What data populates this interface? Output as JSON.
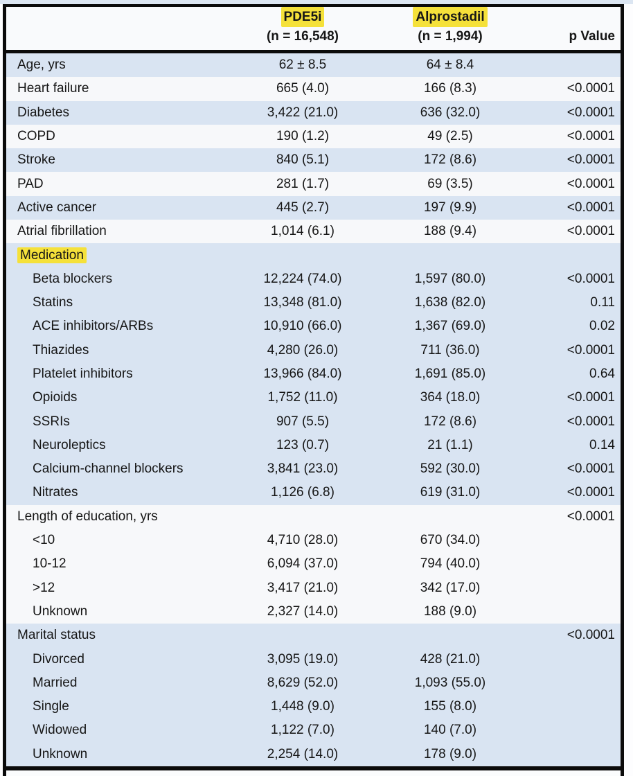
{
  "colors": {
    "highlight_yellow": "#f5e13a",
    "row_blue": "#d9e4f2",
    "row_white": "#f7f8fa",
    "border_black": "#0b0b0b"
  },
  "table": {
    "header": {
      "group1": {
        "name": "PDE5i",
        "n": "(n = 16,548)",
        "highlight": true
      },
      "group2": {
        "name": "Alprostadil",
        "n": "(n = 1,994)",
        "highlight": true
      },
      "pvalue_label": "p Value"
    },
    "rows": [
      {
        "label": "Age, yrs",
        "v1": "62 ± 8.5",
        "v2": "64 ± 8.4",
        "p": "",
        "indent": false,
        "highlight": false,
        "shade": "blue"
      },
      {
        "label": "Heart failure",
        "v1": "665 (4.0)",
        "v2": "166 (8.3)",
        "p": "<0.0001",
        "indent": false,
        "highlight": false,
        "shade": "white"
      },
      {
        "label": "Diabetes",
        "v1": "3,422 (21.0)",
        "v2": "636 (32.0)",
        "p": "<0.0001",
        "indent": false,
        "highlight": false,
        "shade": "blue"
      },
      {
        "label": "COPD",
        "v1": "190 (1.2)",
        "v2": "49 (2.5)",
        "p": "<0.0001",
        "indent": false,
        "highlight": false,
        "shade": "white"
      },
      {
        "label": "Stroke",
        "v1": "840 (5.1)",
        "v2": "172 (8.6)",
        "p": "<0.0001",
        "indent": false,
        "highlight": false,
        "shade": "blue"
      },
      {
        "label": "PAD",
        "v1": "281 (1.7)",
        "v2": "69 (3.5)",
        "p": "<0.0001",
        "indent": false,
        "highlight": false,
        "shade": "white"
      },
      {
        "label": "Active cancer",
        "v1": "445 (2.7)",
        "v2": "197 (9.9)",
        "p": "<0.0001",
        "indent": false,
        "highlight": false,
        "shade": "blue"
      },
      {
        "label": "Atrial fibrillation",
        "v1": "1,014 (6.1)",
        "v2": "188 (9.4)",
        "p": "<0.0001",
        "indent": false,
        "highlight": false,
        "shade": "white"
      },
      {
        "label": "Medication",
        "v1": "",
        "v2": "",
        "p": "",
        "indent": false,
        "highlight": true,
        "shade": "blue"
      },
      {
        "label": "Beta blockers",
        "v1": "12,224 (74.0)",
        "v2": "1,597 (80.0)",
        "p": "<0.0001",
        "indent": true,
        "highlight": false,
        "shade": "blue"
      },
      {
        "label": "Statins",
        "v1": "13,348 (81.0)",
        "v2": "1,638 (82.0)",
        "p": "0.11",
        "indent": true,
        "highlight": false,
        "shade": "blue"
      },
      {
        "label": "ACE inhibitors/ARBs",
        "v1": "10,910 (66.0)",
        "v2": "1,367 (69.0)",
        "p": "0.02",
        "indent": true,
        "highlight": false,
        "shade": "blue"
      },
      {
        "label": "Thiazides",
        "v1": "4,280 (26.0)",
        "v2": "711 (36.0)",
        "p": "<0.0001",
        "indent": true,
        "highlight": false,
        "shade": "blue"
      },
      {
        "label": "Platelet inhibitors",
        "v1": "13,966 (84.0)",
        "v2": "1,691 (85.0)",
        "p": "0.64",
        "indent": true,
        "highlight": false,
        "shade": "blue"
      },
      {
        "label": "Opioids",
        "v1": "1,752 (11.0)",
        "v2": "364 (18.0)",
        "p": "<0.0001",
        "indent": true,
        "highlight": false,
        "shade": "blue"
      },
      {
        "label": "SSRIs",
        "v1": "907 (5.5)",
        "v2": "172 (8.6)",
        "p": "<0.0001",
        "indent": true,
        "highlight": false,
        "shade": "blue"
      },
      {
        "label": "Neuroleptics",
        "v1": "123 (0.7)",
        "v2": "21 (1.1)",
        "p": "0.14",
        "indent": true,
        "highlight": false,
        "shade": "blue"
      },
      {
        "label": "Calcium-channel blockers",
        "v1": "3,841 (23.0)",
        "v2": "592 (30.0)",
        "p": "<0.0001",
        "indent": true,
        "highlight": false,
        "shade": "blue"
      },
      {
        "label": "Nitrates",
        "v1": "1,126 (6.8)",
        "v2": "619 (31.0)",
        "p": "<0.0001",
        "indent": true,
        "highlight": false,
        "shade": "blue"
      },
      {
        "label": "Length of education, yrs",
        "v1": "",
        "v2": "",
        "p": "<0.0001",
        "indent": false,
        "highlight": false,
        "shade": "white"
      },
      {
        "label": "<10",
        "v1": "4,710 (28.0)",
        "v2": "670 (34.0)",
        "p": "",
        "indent": true,
        "highlight": false,
        "shade": "white"
      },
      {
        "label": "10-12",
        "v1": "6,094 (37.0)",
        "v2": "794 (40.0)",
        "p": "",
        "indent": true,
        "highlight": false,
        "shade": "white"
      },
      {
        "label": ">12",
        "v1": "3,417 (21.0)",
        "v2": "342 (17.0)",
        "p": "",
        "indent": true,
        "highlight": false,
        "shade": "white"
      },
      {
        "label": "Unknown",
        "v1": "2,327 (14.0)",
        "v2": "188 (9.0)",
        "p": "",
        "indent": true,
        "highlight": false,
        "shade": "white"
      },
      {
        "label": "Marital status",
        "v1": "",
        "v2": "",
        "p": "<0.0001",
        "indent": false,
        "highlight": false,
        "shade": "blue"
      },
      {
        "label": "Divorced",
        "v1": "3,095 (19.0)",
        "v2": "428 (21.0)",
        "p": "",
        "indent": true,
        "highlight": false,
        "shade": "blue"
      },
      {
        "label": "Married",
        "v1": "8,629 (52.0)",
        "v2": "1,093 (55.0)",
        "p": "",
        "indent": true,
        "highlight": false,
        "shade": "blue"
      },
      {
        "label": "Single",
        "v1": "1,448 (9.0)",
        "v2": "155 (8.0)",
        "p": "",
        "indent": true,
        "highlight": false,
        "shade": "blue"
      },
      {
        "label": "Widowed",
        "v1": "1,122 (7.0)",
        "v2": "140 (7.0)",
        "p": "",
        "indent": true,
        "highlight": false,
        "shade": "blue"
      },
      {
        "label": "Unknown",
        "v1": "2,254 (14.0)",
        "v2": "178 (9.0)",
        "p": "",
        "indent": true,
        "highlight": false,
        "shade": "blue"
      }
    ]
  }
}
